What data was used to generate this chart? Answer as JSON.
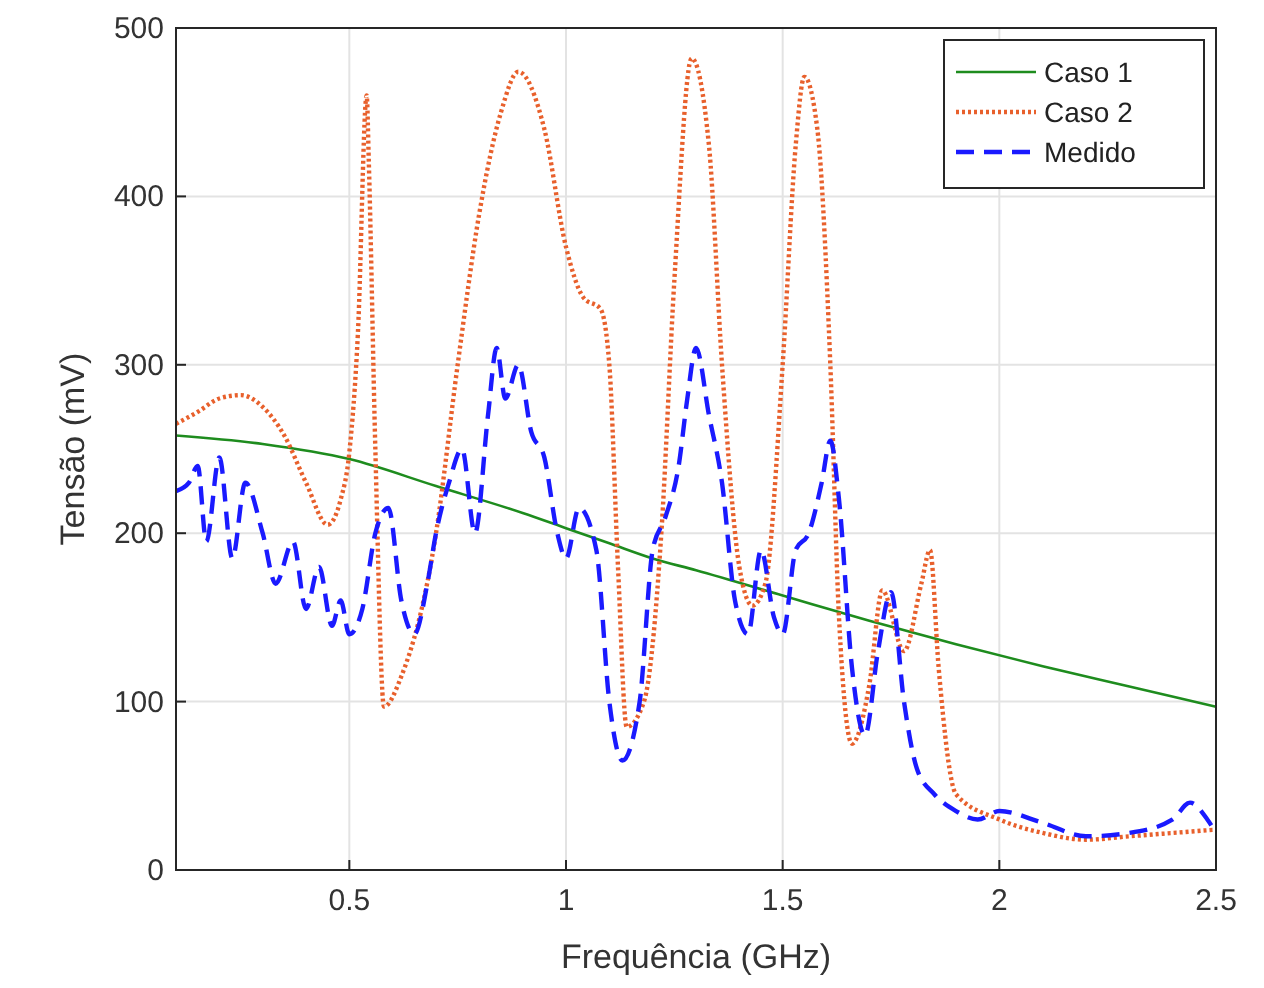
{
  "chart_data": {
    "type": "line",
    "xlabel": "Frequência (GHz)",
    "ylabel": "Tensão (mV)",
    "xlim": [
      0.1,
      2.5
    ],
    "ylim": [
      0,
      500
    ],
    "xticks": [
      0.5,
      1,
      1.5,
      2,
      2.5
    ],
    "yticks": [
      0,
      100,
      200,
      300,
      400,
      500
    ],
    "grid": true,
    "legend": "top right",
    "series": [
      {
        "name": "Caso 1",
        "color": "#1e8c1e",
        "line_style": "solid",
        "x": [
          0.1,
          0.3,
          0.5,
          0.7,
          0.9,
          1.0,
          1.1,
          1.2,
          1.3,
          1.5,
          1.7,
          1.9,
          2.1,
          2.3,
          2.5
        ],
        "values": [
          258,
          253,
          244,
          228,
          212,
          203,
          194,
          185,
          178,
          163,
          148,
          134,
          121,
          109,
          97
        ]
      },
      {
        "name": "Caso 2",
        "color": "#e8602c",
        "line_style": "dotted",
        "x": [
          0.1,
          0.15,
          0.2,
          0.25,
          0.3,
          0.35,
          0.4,
          0.45,
          0.48,
          0.5,
          0.52,
          0.54,
          0.545,
          0.56,
          0.58,
          0.62,
          0.7,
          0.75,
          0.8,
          0.85,
          0.89,
          0.95,
          1.0,
          1.04,
          1.08,
          1.1,
          1.12,
          1.14,
          1.18,
          1.22,
          1.25,
          1.29,
          1.33,
          1.36,
          1.4,
          1.43,
          1.46,
          1.5,
          1.53,
          1.55,
          1.58,
          1.61,
          1.63,
          1.66,
          1.7,
          1.73,
          1.78,
          1.82,
          1.84,
          1.86,
          1.9,
          2.0,
          2.1,
          2.2,
          2.3,
          2.4,
          2.5
        ],
        "values": [
          265,
          272,
          280,
          282,
          275,
          258,
          230,
          205,
          220,
          248,
          320,
          460,
          420,
          250,
          97,
          115,
          200,
          300,
          390,
          450,
          474,
          440,
          370,
          340,
          333,
          300,
          180,
          85,
          100,
          200,
          350,
          482,
          430,
          300,
          180,
          157,
          170,
          300,
          430,
          471,
          440,
          300,
          150,
          75,
          110,
          166,
          130,
          170,
          190,
          120,
          45,
          30,
          22,
          18,
          20,
          22,
          24
        ]
      },
      {
        "name": "Medido",
        "color": "#1a1aff",
        "line_style": "dashed",
        "x": [
          0.1,
          0.13,
          0.15,
          0.17,
          0.2,
          0.23,
          0.26,
          0.3,
          0.33,
          0.37,
          0.4,
          0.43,
          0.46,
          0.48,
          0.5,
          0.53,
          0.56,
          0.59,
          0.62,
          0.65,
          0.68,
          0.7,
          0.73,
          0.76,
          0.79,
          0.82,
          0.84,
          0.86,
          0.89,
          0.92,
          0.95,
          0.98,
          1.0,
          1.03,
          1.07,
          1.1,
          1.13,
          1.17,
          1.2,
          1.23,
          1.26,
          1.28,
          1.3,
          1.33,
          1.36,
          1.39,
          1.42,
          1.45,
          1.48,
          1.5,
          1.53,
          1.56,
          1.59,
          1.61,
          1.63,
          1.66,
          1.69,
          1.72,
          1.75,
          1.78,
          1.81,
          1.85,
          1.9,
          1.95,
          2.0,
          2.1,
          2.2,
          2.3,
          2.4,
          2.44,
          2.48,
          2.5
        ],
        "values": [
          225,
          230,
          240,
          195,
          245,
          185,
          230,
          200,
          170,
          195,
          155,
          180,
          145,
          160,
          140,
          155,
          200,
          215,
          160,
          140,
          170,
          200,
          230,
          250,
          200,
          270,
          310,
          280,
          300,
          260,
          245,
          200,
          185,
          215,
          190,
          100,
          65,
          100,
          190,
          210,
          240,
          280,
          310,
          270,
          230,
          160,
          140,
          190,
          150,
          140,
          190,
          200,
          230,
          255,
          220,
          120,
          80,
          130,
          165,
          100,
          60,
          45,
          35,
          30,
          35,
          28,
          20,
          22,
          30,
          40,
          30,
          22
        ]
      }
    ]
  }
}
